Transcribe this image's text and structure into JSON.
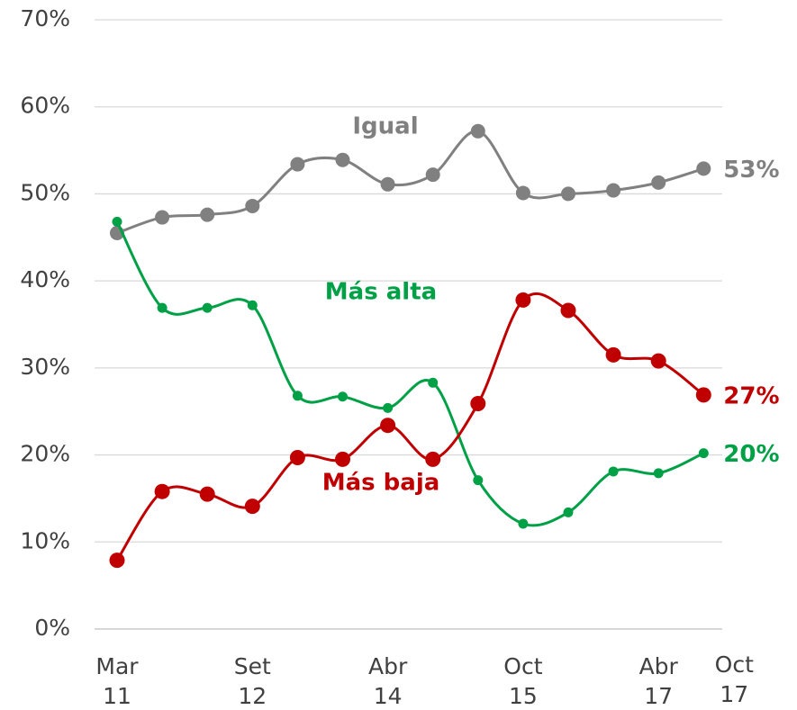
{
  "chart_data": {
    "type": "line",
    "categories": [
      "Mar 11",
      null,
      null,
      "Set 12",
      null,
      null,
      "Abr 14",
      null,
      null,
      "Oct 15",
      null,
      null,
      "Abr 17",
      "Oct 17"
    ],
    "series": [
      {
        "name": "Igual",
        "color": "#808080",
        "values": [
          45.5,
          47.3,
          47.6,
          48.6,
          53.4,
          53.9,
          51.1,
          52.2,
          57.2,
          50.1,
          50.0,
          50.4,
          51.3,
          52.9
        ],
        "end_label": "53%"
      },
      {
        "name": "Más alta",
        "color": "#00a046",
        "values": [
          46.8,
          36.9,
          36.9,
          37.2,
          26.8,
          26.7,
          25.4,
          28.3,
          17.1,
          12.1,
          13.4,
          18.1,
          17.9,
          20.2
        ],
        "end_label": "20%"
      },
      {
        "name": "Más baja",
        "color": "#c00000",
        "values": [
          7.9,
          15.8,
          15.5,
          14.1,
          19.7,
          19.5,
          23.4,
          19.5,
          25.9,
          37.8,
          36.6,
          31.5,
          30.8,
          26.9
        ],
        "end_label": "27%"
      }
    ],
    "ylim": [
      0,
      70
    ],
    "yticks": [
      {
        "value": 0,
        "label": "0%"
      },
      {
        "value": 10,
        "label": "10%"
      },
      {
        "value": 20,
        "label": "20%"
      },
      {
        "value": 30,
        "label": "30%"
      },
      {
        "value": 40,
        "label": "40%"
      },
      {
        "value": 50,
        "label": "50%"
      },
      {
        "value": 60,
        "label": "60%"
      },
      {
        "value": 70,
        "label": "70%"
      }
    ],
    "grid": true
  }
}
